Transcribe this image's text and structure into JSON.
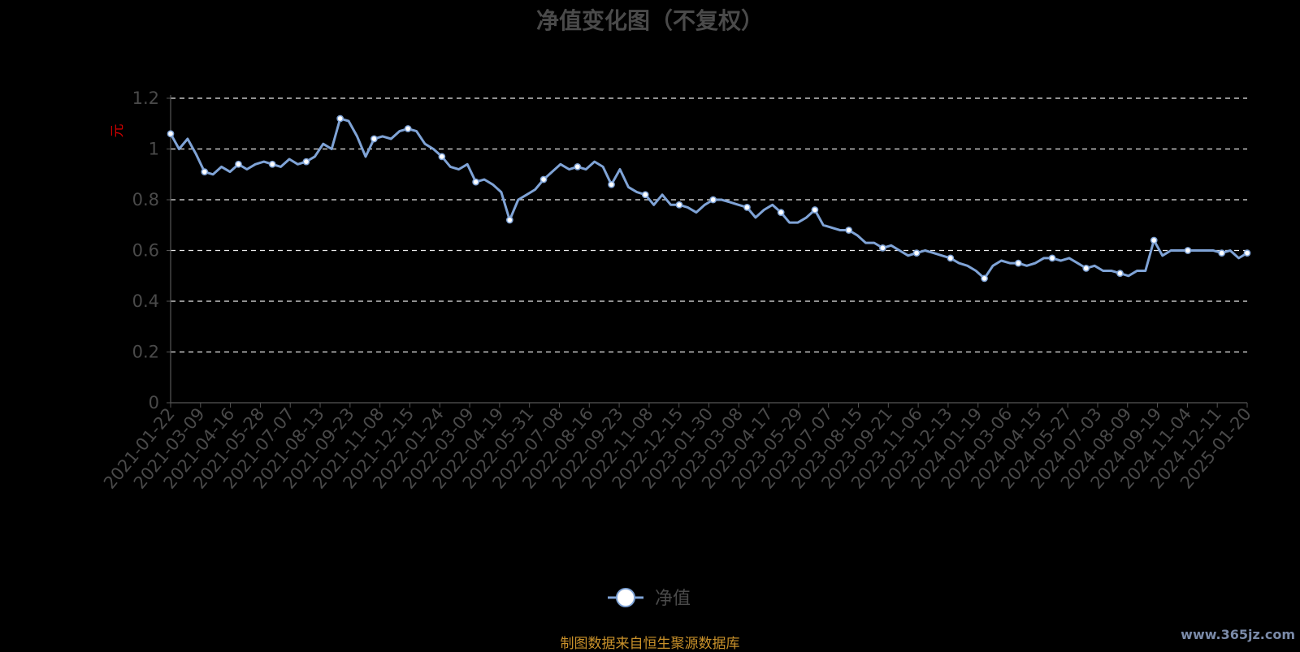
{
  "chart_data": {
    "type": "line",
    "title": "净值变化图（不复权）",
    "ylabel": "元",
    "ylim": [
      0,
      1.2
    ],
    "yticks": [
      "0",
      "0.2",
      "0.4",
      "0.6",
      "0.8",
      "1",
      "1.2"
    ],
    "grid": "horizontal-dashed",
    "legend_position": "bottom-center",
    "x_tick_labels": [
      "2021-01-22",
      "2021-03-09",
      "2021-04-16",
      "2021-05-28",
      "2021-07-07",
      "2021-08-13",
      "2021-09-23",
      "2021-11-08",
      "2021-12-15",
      "2022-01-24",
      "2022-03-09",
      "2022-04-19",
      "2022-05-31",
      "2022-07-08",
      "2022-08-16",
      "2022-09-23",
      "2022-11-08",
      "2022-12-15",
      "2023-01-30",
      "2023-03-08",
      "2023-04-17",
      "2023-05-29",
      "2023-07-07",
      "2023-08-15",
      "2023-09-21",
      "2023-11-06",
      "2023-12-13",
      "2024-01-19",
      "2024-03-06",
      "2024-04-15",
      "2024-05-27",
      "2024-07-03",
      "2024-08-09",
      "2024-09-19",
      "2024-11-04",
      "2024-12-11",
      "2025-01-20"
    ],
    "series": [
      {
        "name": "净值",
        "color": "#7fa3d6",
        "values": [
          1.06,
          1.0,
          1.04,
          0.98,
          0.91,
          0.9,
          0.93,
          0.91,
          0.94,
          0.92,
          0.94,
          0.95,
          0.94,
          0.93,
          0.96,
          0.94,
          0.95,
          0.97,
          1.02,
          1.0,
          1.12,
          1.11,
          1.05,
          0.97,
          1.04,
          1.05,
          1.04,
          1.07,
          1.08,
          1.07,
          1.02,
          1.0,
          0.97,
          0.93,
          0.92,
          0.94,
          0.87,
          0.88,
          0.86,
          0.83,
          0.72,
          0.8,
          0.82,
          0.84,
          0.88,
          0.91,
          0.94,
          0.92,
          0.93,
          0.92,
          0.95,
          0.93,
          0.86,
          0.92,
          0.85,
          0.83,
          0.82,
          0.78,
          0.82,
          0.78,
          0.78,
          0.77,
          0.75,
          0.78,
          0.8,
          0.8,
          0.79,
          0.78,
          0.77,
          0.73,
          0.76,
          0.78,
          0.75,
          0.71,
          0.71,
          0.73,
          0.76,
          0.7,
          0.69,
          0.68,
          0.68,
          0.66,
          0.63,
          0.63,
          0.61,
          0.62,
          0.6,
          0.58,
          0.59,
          0.6,
          0.59,
          0.58,
          0.57,
          0.55,
          0.54,
          0.52,
          0.49,
          0.54,
          0.56,
          0.55,
          0.55,
          0.54,
          0.55,
          0.57,
          0.57,
          0.56,
          0.57,
          0.55,
          0.53,
          0.54,
          0.52,
          0.52,
          0.51,
          0.5,
          0.52,
          0.52,
          0.64,
          0.58,
          0.6,
          0.6,
          0.6,
          0.6,
          0.6,
          0.6,
          0.59,
          0.6,
          0.57,
          0.59
        ]
      }
    ]
  },
  "source_note": "制图数据来自恒生聚源数据库",
  "watermark": "www.365jz.com"
}
